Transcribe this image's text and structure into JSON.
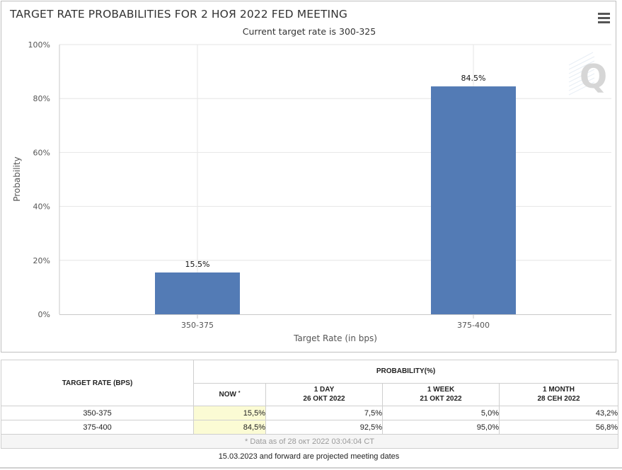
{
  "chart": {
    "menu_icon": "hamburger-menu-icon",
    "watermark_icon": "q-logo-icon"
  },
  "chart_data": {
    "type": "bar",
    "title": "TARGET RATE PROBABILITIES FOR 2 НОЯ 2022 FED MEETING",
    "subtitle": "Current target rate is 300-325",
    "categories": [
      "350-375",
      "375-400"
    ],
    "values": [
      15.5,
      84.5
    ],
    "data_labels": [
      "15.5%",
      "84.5%"
    ],
    "xlabel": "Target Rate (in bps)",
    "ylabel": "Probability",
    "ylim": [
      0,
      100
    ],
    "yticks": [
      0,
      20,
      40,
      60,
      80,
      100
    ],
    "ytick_labels": [
      "0%",
      "20%",
      "40%",
      "60%",
      "80%",
      "100%"
    ],
    "grid": true,
    "bar_color": "#537bb5"
  },
  "table": {
    "target_header": "TARGET RATE (BPS)",
    "probability_header": "PROBABILITY(%)",
    "now_label": "NOW",
    "now_mark": "*",
    "columns": [
      {
        "line1": "1 DAY",
        "line2": "26 ОКТ 2022"
      },
      {
        "line1": "1 WEEK",
        "line2": "21 ОКТ 2022"
      },
      {
        "line1": "1 MONTH",
        "line2": "28 СЕН 2022"
      }
    ],
    "rows": [
      {
        "rate": "350-375",
        "now": "15,5%",
        "d1": "7,5%",
        "w1": "5,0%",
        "m1": "43,2%"
      },
      {
        "rate": "375-400",
        "now": "84,5%",
        "d1": "92,5%",
        "w1": "95,0%",
        "m1": "56,8%"
      }
    ],
    "note": "* Data as of 28 окт 2022 03:04:04 CT",
    "now_highlight": "#fbfbd4"
  },
  "footer": "15.03.2023 and forward are projected meeting dates"
}
